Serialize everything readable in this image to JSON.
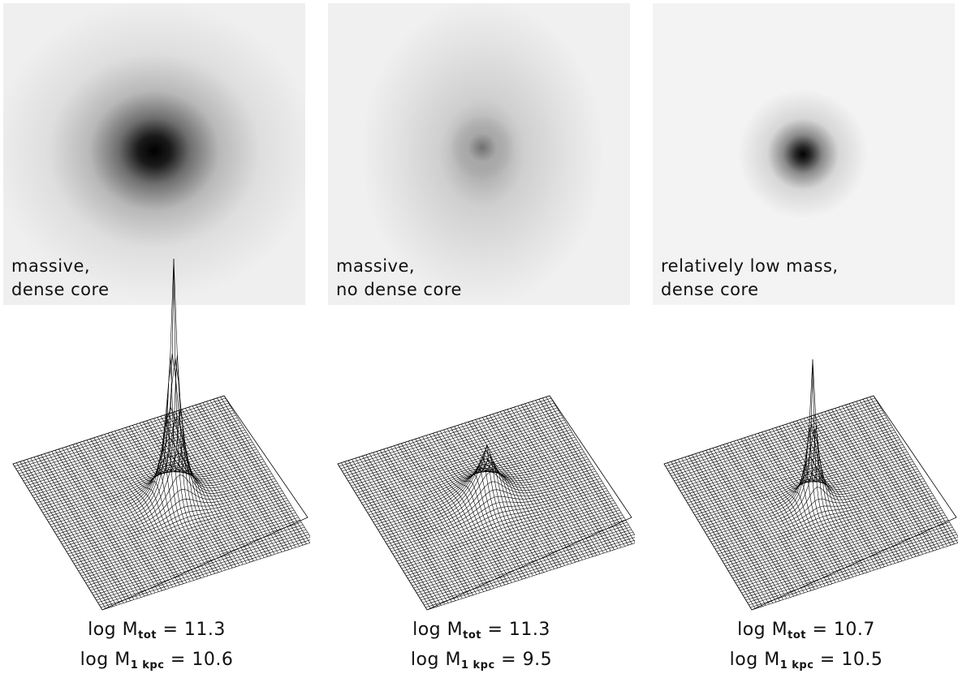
{
  "panels": [
    {
      "caption": [
        "massive,",
        "dense core"
      ],
      "log_label": "log",
      "m_symbol": "M",
      "tot_sub": "tot",
      "kpc_sub": "1 kpc",
      "eq": "=",
      "log_mtot": "11.3",
      "log_m1kpc": "10.6"
    },
    {
      "caption": [
        "massive,",
        "no dense core"
      ],
      "log_label": "log",
      "m_symbol": "M",
      "tot_sub": "tot",
      "kpc_sub": "1 kpc",
      "eq": "=",
      "log_mtot": "11.3",
      "log_m1kpc": "9.5"
    },
    {
      "caption": [
        "relatively low mass,",
        "dense core"
      ],
      "log_label": "log",
      "m_symbol": "M",
      "tot_sub": "tot",
      "kpc_sub": "1 kpc",
      "eq": "=",
      "log_mtot": "10.7",
      "log_m1kpc": "10.5"
    }
  ]
}
